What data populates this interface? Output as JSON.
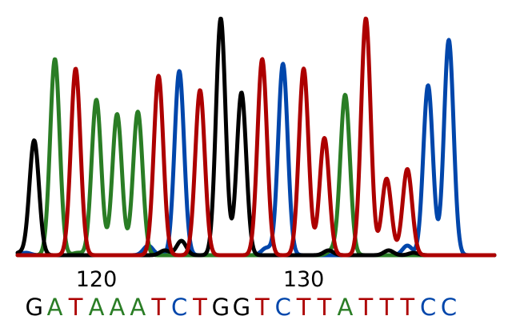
{
  "chart_data": {
    "type": "line",
    "title": "",
    "xlabel": "",
    "ylabel": "",
    "x_range": [
      116.2,
      139.2
    ],
    "y_range": [
      0,
      100
    ],
    "position_ticks": [
      {
        "position": 120,
        "label": "120"
      },
      {
        "position": 130,
        "label": "130"
      }
    ],
    "base_calls": [
      {
        "position": 117,
        "base": "G"
      },
      {
        "position": 118,
        "base": "A"
      },
      {
        "position": 119,
        "base": "T"
      },
      {
        "position": 120,
        "base": "A"
      },
      {
        "position": 121,
        "base": "A"
      },
      {
        "position": 122,
        "base": "A"
      },
      {
        "position": 123,
        "base": "T"
      },
      {
        "position": 124,
        "base": "C"
      },
      {
        "position": 125,
        "base": "T"
      },
      {
        "position": 126,
        "base": "G"
      },
      {
        "position": 127,
        "base": "G"
      },
      {
        "position": 128,
        "base": "T"
      },
      {
        "position": 129,
        "base": "C"
      },
      {
        "position": 130,
        "base": "T"
      },
      {
        "position": 131,
        "base": "T"
      },
      {
        "position": 132,
        "base": "A"
      },
      {
        "position": 133,
        "base": "T"
      },
      {
        "position": 134,
        "base": "T"
      },
      {
        "position": 135,
        "base": "T"
      },
      {
        "position": 136,
        "base": "C"
      },
      {
        "position": 137,
        "base": "C"
      }
    ],
    "series": [
      {
        "name": "G",
        "color": "#000000",
        "peaks": [
          {
            "position": 117,
            "height": 48
          },
          {
            "position": 126,
            "height": 99
          },
          {
            "position": 127,
            "height": 68
          },
          {
            "position": 124.1,
            "height": 6
          },
          {
            "position": 131.2,
            "height": 2
          },
          {
            "position": 134.1,
            "height": 2
          },
          {
            "position": 135.3,
            "height": 1
          },
          {
            "position": 116.3,
            "height": 1
          },
          {
            "position": 123.3,
            "height": 2
          }
        ]
      },
      {
        "name": "A",
        "color": "#2a7d25",
        "peaks": [
          {
            "position": 118,
            "height": 82
          },
          {
            "position": 120,
            "height": 65
          },
          {
            "position": 121,
            "height": 59
          },
          {
            "position": 122,
            "height": 60
          },
          {
            "position": 132,
            "height": 67
          },
          {
            "position": 119.1,
            "height": 1
          },
          {
            "position": 131.4,
            "height": 2
          }
        ]
      },
      {
        "name": "T",
        "color": "#ad0000",
        "peaks": [
          {
            "position": 119,
            "height": 78
          },
          {
            "position": 123,
            "height": 75
          },
          {
            "position": 125,
            "height": 69
          },
          {
            "position": 128,
            "height": 82
          },
          {
            "position": 130,
            "height": 78
          },
          {
            "position": 131,
            "height": 49
          },
          {
            "position": 133,
            "height": 99
          },
          {
            "position": 134,
            "height": 32
          },
          {
            "position": 135,
            "height": 36
          }
        ]
      },
      {
        "name": "C",
        "color": "#0046ab",
        "peaks": [
          {
            "position": 124,
            "height": 77
          },
          {
            "position": 129,
            "height": 80
          },
          {
            "position": 136,
            "height": 71
          },
          {
            "position": 137,
            "height": 90
          },
          {
            "position": 122.5,
            "height": 4
          },
          {
            "position": 128.2,
            "height": 3
          },
          {
            "position": 135.0,
            "height": 4
          },
          {
            "position": 116.6,
            "height": 1
          }
        ]
      }
    ]
  }
}
